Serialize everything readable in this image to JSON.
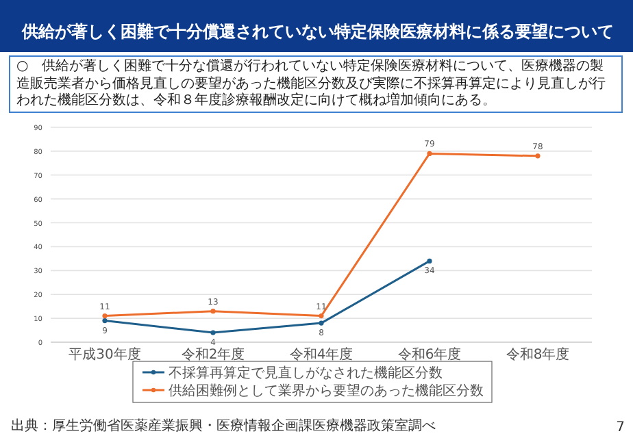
{
  "chart_data": {
    "type": "line",
    "title": "供給が著しく困難で十分償還されていない特定保険医療材料に係る要望について",
    "subtitle": "○　供給が著しく困難で十分な償還が行われていない特定保険医療材料について、医療機器の製造販売業者から価格見直しの要望があった機能区分数及び実際に不採算再算定により見直しが行われた機能区分数は、令和８年度診療報酬改定に向けて概ね増加傾向にある。",
    "categories": [
      "平成30年度",
      "令和2年度",
      "令和4年度",
      "令和6年度",
      "令和8年度"
    ],
    "series": [
      {
        "name": "不採算再算定で見直しがなされた機能区分数",
        "color": "#1f5f8b",
        "values": [
          9,
          4,
          8,
          34,
          null
        ]
      },
      {
        "name": "供給困難例として業界から要望のあった機能区分数",
        "color": "#ed6d2c",
        "values": [
          11,
          13,
          11,
          79,
          78
        ]
      }
    ],
    "ylim": [
      0,
      90
    ],
    "yticks": [
      0,
      10,
      20,
      30,
      40,
      50,
      60,
      70,
      80,
      90
    ],
    "grid": "y",
    "legend": "bottom",
    "marker": "circle",
    "data_labels": true,
    "annotations": [
      "出典：厚生労働省医薬産業振興・医療情報企画課医療機器政策室調べ",
      "7"
    ]
  }
}
